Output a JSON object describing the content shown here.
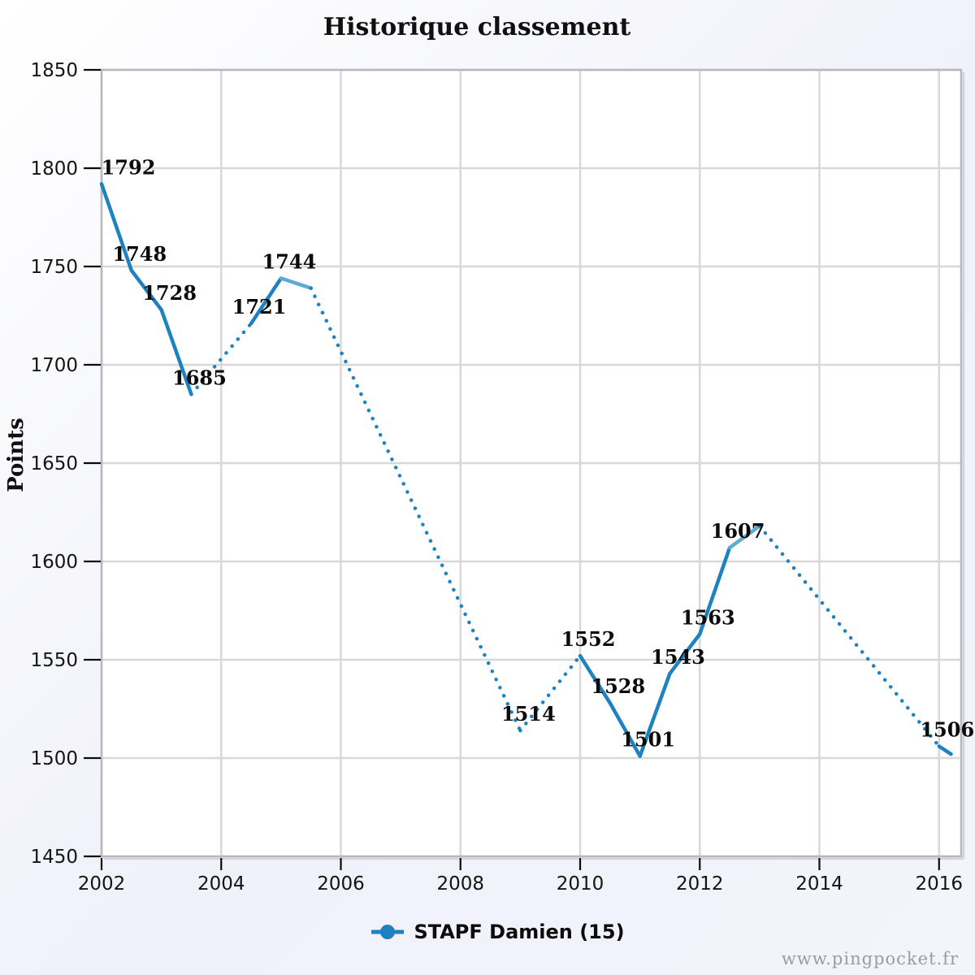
{
  "page": {
    "watermark": "www.pingpocket.fr"
  },
  "chart_data": {
    "type": "line",
    "title": "Historique classement",
    "xlabel": "",
    "ylabel": "Points",
    "legend": {
      "label": "STAPF Damien (15)",
      "position": "bottom-center"
    },
    "grid": true,
    "series_color": "#1e82c0",
    "series_color_light": "#5cabd7",
    "xlim": [
      2002,
      2016.37
    ],
    "ylim": [
      1450,
      1850
    ],
    "xticks": [
      2002,
      2004,
      2006,
      2008,
      2010,
      2012,
      2014,
      2016
    ],
    "yticks": [
      1450,
      1500,
      1550,
      1600,
      1650,
      1700,
      1750,
      1800,
      1850
    ],
    "points": [
      {
        "x": 2002.0,
        "y": 1792,
        "label": "1792",
        "to_next": "solid"
      },
      {
        "x": 2002.5,
        "y": 1748,
        "label": "1748",
        "to_next": "solid"
      },
      {
        "x": 2003.0,
        "y": 1728,
        "label": "1728",
        "to_next": "solid"
      },
      {
        "x": 2003.5,
        "y": 1685,
        "label": "1685",
        "to_next": "dotted"
      },
      {
        "x": 2004.5,
        "y": 1721,
        "label": "1721",
        "to_next": "solid"
      },
      {
        "x": 2005.0,
        "y": 1744,
        "label": "1744",
        "to_next": "solid_light"
      },
      {
        "x": 2005.5,
        "y": 1739,
        "to_next": "dotted"
      },
      {
        "x": 2009.0,
        "y": 1514,
        "label": "1514",
        "to_next": "dotted"
      },
      {
        "x": 2010.0,
        "y": 1552,
        "label": "1552",
        "to_next": "solid"
      },
      {
        "x": 2010.5,
        "y": 1528,
        "label": "1528",
        "to_next": "solid"
      },
      {
        "x": 2011.0,
        "y": 1501,
        "label": "1501",
        "to_next": "solid"
      },
      {
        "x": 2011.5,
        "y": 1543,
        "label": "1543",
        "to_next": "solid"
      },
      {
        "x": 2012.0,
        "y": 1563,
        "label": "1563",
        "to_next": "solid"
      },
      {
        "x": 2012.5,
        "y": 1607,
        "label": "1607",
        "to_next": "solid_light"
      },
      {
        "x": 2013.0,
        "y": 1618,
        "to_next": "dotted"
      },
      {
        "x": 2016.0,
        "y": 1506,
        "label": "1506",
        "to_next": "solid"
      },
      {
        "x": 2016.2,
        "y": 1502,
        "to_next": null
      }
    ]
  }
}
